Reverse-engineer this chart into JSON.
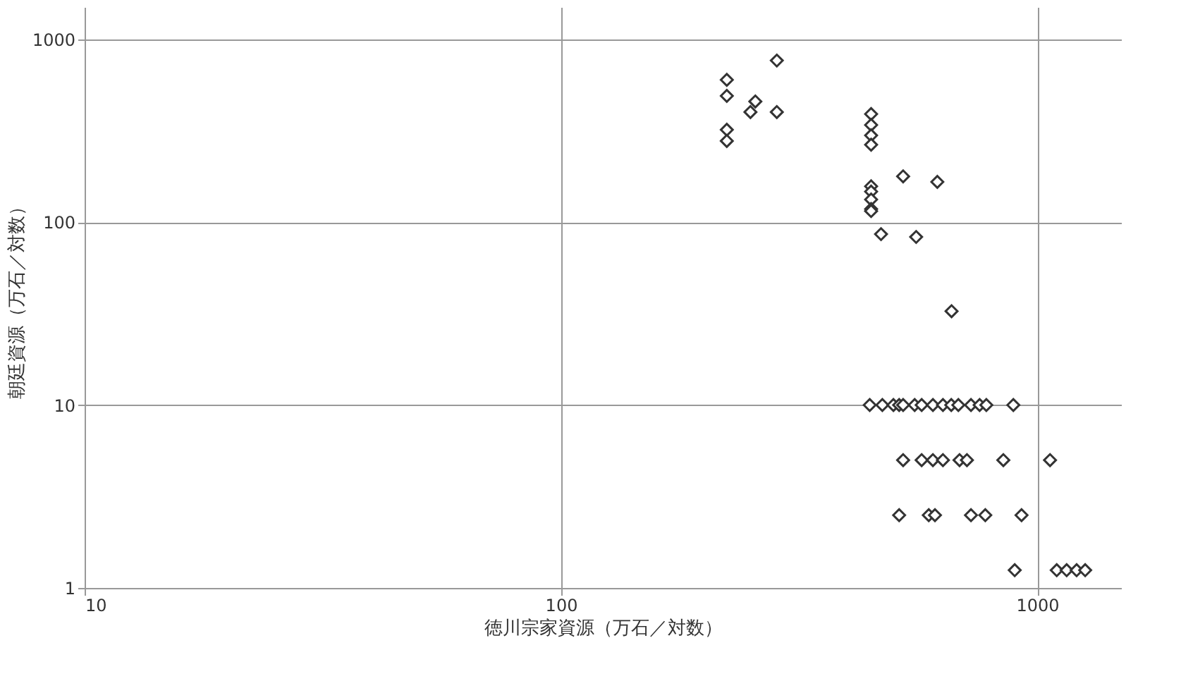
{
  "chart_data": {
    "type": "scatter",
    "xlabel": "徳川宗家資源（万石／対数）",
    "ylabel": "朝廷資源（万石／対数）",
    "log": "xy",
    "grid": true,
    "marker": "diamond",
    "xlim": [
      10,
      1500
    ],
    "ylim": [
      1,
      1500
    ],
    "xticks": [
      10,
      100,
      1000
    ],
    "yticks": [
      1,
      10,
      100,
      1000
    ],
    "series": [
      {
        "color": "#333333",
        "x": [
          223,
          223,
          223,
          223,
          256,
          250,
          284,
          284,
          448,
          448,
          448,
          448,
          448,
          448,
          448,
          448,
          448,
          523,
          617,
          470,
          557,
          661,
          445,
          473,
          499,
          513,
          523,
          553,
          572,
          604,
          634,
          660,
          683,
          726,
          757,
          782,
          891,
          523,
          572,
          604,
          634,
          687,
          712,
          849,
          1064,
          513,
          592,
          610,
          726,
          778,
          927,
          897,
          1099,
          1153,
          1210,
          1261
        ],
        "values": [
          600,
          490,
          320,
          278,
          457,
          400,
          765,
          400,
          390,
          340,
          298,
          265,
          157,
          147,
          133,
          118,
          115,
          178,
          166,
          86,
          83,
          32.6,
          10,
          10,
          10,
          10,
          10,
          10,
          10,
          10,
          10,
          10,
          10,
          10,
          10,
          10,
          10,
          5,
          5,
          5,
          5,
          5,
          5,
          5,
          5,
          2.5,
          2.5,
          2.5,
          2.5,
          2.5,
          2.5,
          1.25,
          1.25,
          1.25,
          1.25,
          1.25
        ]
      }
    ]
  }
}
